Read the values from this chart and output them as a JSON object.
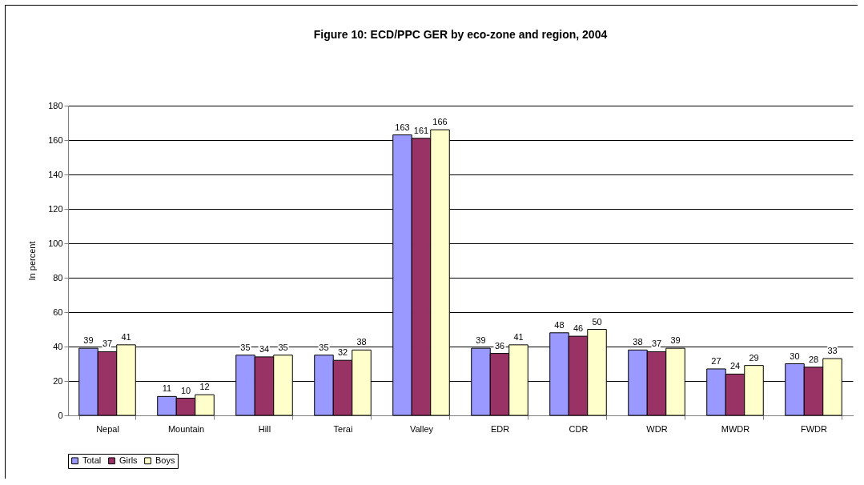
{
  "chart_data": {
    "type": "bar",
    "title": "Figure 10: ECD/PPC GER by eco-zone and region, 2004",
    "ylabel": "In percent",
    "categories": [
      "Nepal",
      "Mountain",
      "Hill",
      "Terai",
      "Valley",
      "EDR",
      "CDR",
      "WDR",
      "MWDR",
      "FWDR"
    ],
    "series": [
      {
        "name": "Total",
        "color": "#9999ff",
        "values": [
          39,
          11,
          35,
          35,
          163,
          39,
          48,
          38,
          27,
          30
        ]
      },
      {
        "name": "Girls",
        "color": "#993366",
        "values": [
          37,
          10,
          34,
          32,
          161,
          36,
          46,
          37,
          24,
          28
        ]
      },
      {
        "name": "Boys",
        "color": "#ffffcc",
        "values": [
          41,
          12,
          35,
          38,
          166,
          41,
          50,
          39,
          29,
          33
        ]
      }
    ],
    "ylim": [
      0,
      180
    ],
    "yticks": [
      0,
      20,
      40,
      60,
      80,
      100,
      120,
      140,
      160,
      180
    ],
    "grid": "y",
    "legend": "bottom",
    "data_labels": true
  }
}
